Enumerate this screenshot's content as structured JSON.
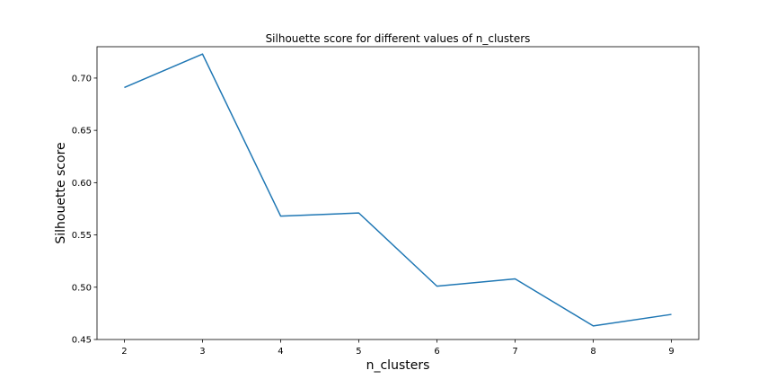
{
  "chart_data": {
    "type": "line",
    "title": "Silhouette score for different values of n_clusters",
    "xlabel": "n_clusters",
    "ylabel": "Silhouette score",
    "x": [
      2,
      3,
      4,
      5,
      6,
      7,
      8,
      9
    ],
    "series": [
      {
        "values": [
          0.691,
          0.723,
          0.568,
          0.571,
          0.501,
          0.508,
          0.463,
          0.474
        ]
      }
    ],
    "xlim": [
      1.65,
      9.35
    ],
    "ylim": [
      0.45,
      0.73
    ],
    "xticks": [
      "2",
      "3",
      "4",
      "5",
      "6",
      "7",
      "8",
      "9"
    ],
    "yticks": [
      "0.45",
      "0.50",
      "0.55",
      "0.60",
      "0.65",
      "0.70"
    ],
    "grid": false,
    "line_color": "#1f77b4"
  }
}
